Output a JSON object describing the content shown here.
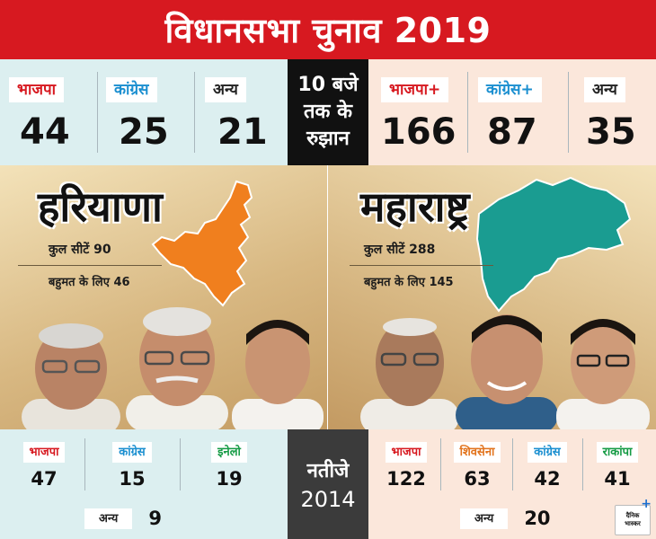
{
  "header": {
    "title": "विधानसभा चुनाव 2019"
  },
  "trends": {
    "center_lines": [
      "10 बजे",
      "तक के",
      "रुझान"
    ],
    "haryana": [
      {
        "party": "भाजपा",
        "seats": "44",
        "color": "#d71920"
      },
      {
        "party": "कांग्रेस",
        "seats": "25",
        "color": "#1b8fd0"
      },
      {
        "party": "अन्य",
        "seats": "21",
        "color": "#222222"
      }
    ],
    "maharashtra": [
      {
        "party": "भाजपा+",
        "seats": "166",
        "color": "#d71920"
      },
      {
        "party": "कांग्रेस+",
        "seats": "87",
        "color": "#1b8fd0"
      },
      {
        "party": "अन्य",
        "seats": "35",
        "color": "#222222"
      }
    ]
  },
  "states": {
    "haryana": {
      "name": "हरियाणा",
      "total_seats_label": "कुल सीटें 90",
      "majority_label": "बहुमत के लिए 46",
      "map_color": "#f07f1e"
    },
    "maharashtra": {
      "name": "महाराष्ट्र",
      "total_seats_label": "कुल सीटें 288",
      "majority_label": "बहुमत के लिए 145",
      "map_color": "#1a9c91"
    }
  },
  "results_2014": {
    "center": {
      "line1": "नतीजे",
      "line2": "2014"
    },
    "haryana": {
      "parties": [
        {
          "party": "भाजपा",
          "seats": "47"
        },
        {
          "party": "कांग्रेस",
          "seats": "15"
        },
        {
          "party": "इनेलो",
          "seats": "19"
        }
      ],
      "others": {
        "party": "अन्य",
        "seats": "9"
      }
    },
    "maharashtra": {
      "parties": [
        {
          "party": "भाजपा",
          "seats": "122"
        },
        {
          "party": "शिवसेना",
          "seats": "63"
        },
        {
          "party": "कांग्रेस",
          "seats": "42"
        },
        {
          "party": "राकांपा",
          "seats": "41"
        }
      ],
      "others": {
        "party": "अन्य",
        "seats": "20"
      }
    }
  },
  "logo": {
    "line1": "दैनिक",
    "line2": "भास्कर",
    "mark": "+"
  }
}
